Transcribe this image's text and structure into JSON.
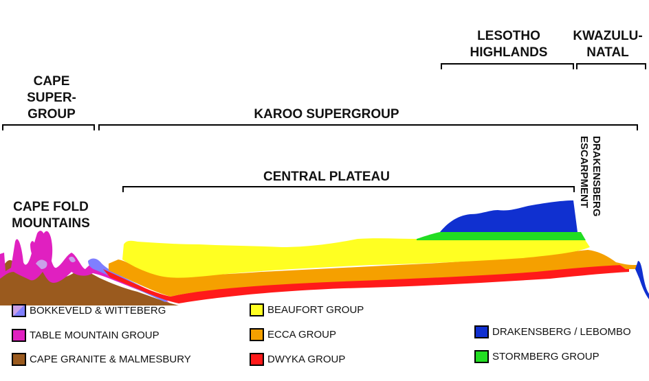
{
  "headings": {
    "cape_supergroup": [
      "CAPE",
      "SUPER-",
      "GROUP"
    ],
    "karoo_supergroup": "KAROO SUPERGROUP",
    "lesotho_highlands": [
      "LESOTHO",
      "HIGHLANDS"
    ],
    "kwazulu_natal": [
      "KWAZULU-",
      "NATAL"
    ],
    "central_plateau": "CENTRAL PLATEAU",
    "cape_fold_mountains": [
      "CAPE FOLD",
      "MOUNTAINS"
    ],
    "drakensberg_escarpment": [
      "DRAKENSBERG",
      "ESCARPMENT"
    ]
  },
  "legend": [
    {
      "label": "BOKKEVELD & WITTEBERG",
      "color": "#7f7fff",
      "color2": "#c9a0e8"
    },
    {
      "label": "TABLE MOUNTAIN GROUP",
      "color": "#e020c0"
    },
    {
      "label": "CAPE GRANITE & MALMESBURY",
      "color": "#9a5a1e"
    },
    {
      "label": "BEAUFORT GROUP",
      "color": "#ffff22"
    },
    {
      "label": "ECCA GROUP",
      "color": "#f5a000"
    },
    {
      "label": "DWYKA GROUP",
      "color": "#ff1a1a"
    },
    {
      "label": "DRAKENSBERG / LEBOMBO",
      "color": "#1030d0"
    },
    {
      "label": "STORMBERG GROUP",
      "color": "#22dd22"
    }
  ]
}
